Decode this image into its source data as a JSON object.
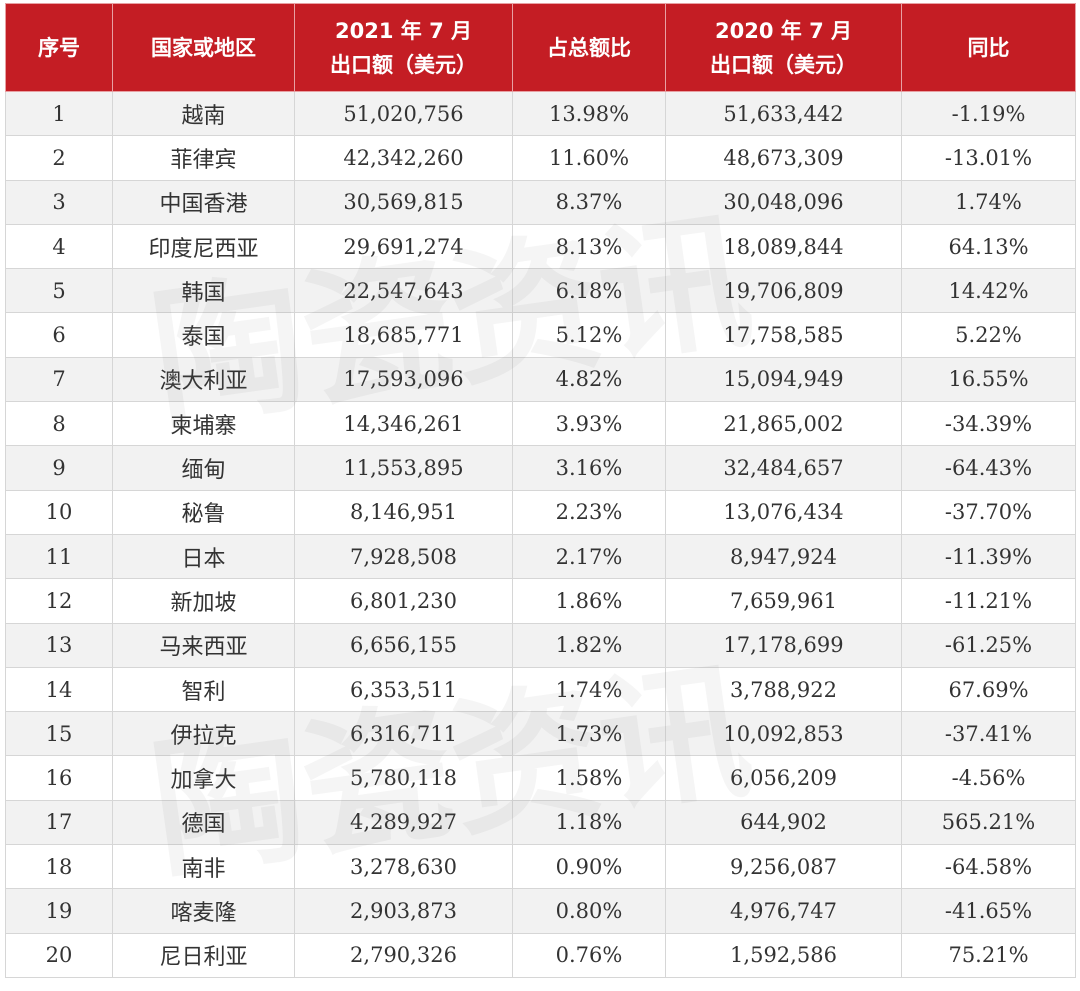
{
  "table": {
    "headers": {
      "rank": "序号",
      "region": "国家或地区",
      "export_2021_line1": "2021 年 7 月",
      "export_2021_line2": "出口额（美元）",
      "share": "占总额比",
      "export_2020_line1": "2020 年 7 月",
      "export_2020_line2": "出口额（美元）",
      "yoy": "同比"
    },
    "rows": [
      {
        "rank": "1",
        "region": "越南",
        "export_2021": "51,020,756",
        "share": "13.98%",
        "export_2020": "51,633,442",
        "yoy": "-1.19%"
      },
      {
        "rank": "2",
        "region": "菲律宾",
        "export_2021": "42,342,260",
        "share": "11.60%",
        "export_2020": "48,673,309",
        "yoy": "-13.01%"
      },
      {
        "rank": "3",
        "region": "中国香港",
        "export_2021": "30,569,815",
        "share": "8.37%",
        "export_2020": "30,048,096",
        "yoy": "1.74%"
      },
      {
        "rank": "4",
        "region": "印度尼西亚",
        "export_2021": "29,691,274",
        "share": "8.13%",
        "export_2020": "18,089,844",
        "yoy": "64.13%"
      },
      {
        "rank": "5",
        "region": "韩国",
        "export_2021": "22,547,643",
        "share": "6.18%",
        "export_2020": "19,706,809",
        "yoy": "14.42%"
      },
      {
        "rank": "6",
        "region": "泰国",
        "export_2021": "18,685,771",
        "share": "5.12%",
        "export_2020": "17,758,585",
        "yoy": "5.22%"
      },
      {
        "rank": "7",
        "region": "澳大利亚",
        "export_2021": "17,593,096",
        "share": "4.82%",
        "export_2020": "15,094,949",
        "yoy": "16.55%"
      },
      {
        "rank": "8",
        "region": "柬埔寨",
        "export_2021": "14,346,261",
        "share": "3.93%",
        "export_2020": "21,865,002",
        "yoy": "-34.39%"
      },
      {
        "rank": "9",
        "region": "缅甸",
        "export_2021": "11,553,895",
        "share": "3.16%",
        "export_2020": "32,484,657",
        "yoy": "-64.43%"
      },
      {
        "rank": "10",
        "region": "秘鲁",
        "export_2021": "8,146,951",
        "share": "2.23%",
        "export_2020": "13,076,434",
        "yoy": "-37.70%"
      },
      {
        "rank": "11",
        "region": "日本",
        "export_2021": "7,928,508",
        "share": "2.17%",
        "export_2020": "8,947,924",
        "yoy": "-11.39%"
      },
      {
        "rank": "12",
        "region": "新加坡",
        "export_2021": "6,801,230",
        "share": "1.86%",
        "export_2020": "7,659,961",
        "yoy": "-11.21%"
      },
      {
        "rank": "13",
        "region": "马来西亚",
        "export_2021": "6,656,155",
        "share": "1.82%",
        "export_2020": "17,178,699",
        "yoy": "-61.25%"
      },
      {
        "rank": "14",
        "region": "智利",
        "export_2021": "6,353,511",
        "share": "1.74%",
        "export_2020": "3,788,922",
        "yoy": "67.69%"
      },
      {
        "rank": "15",
        "region": "伊拉克",
        "export_2021": "6,316,711",
        "share": "1.73%",
        "export_2020": "10,092,853",
        "yoy": "-37.41%"
      },
      {
        "rank": "16",
        "region": "加拿大",
        "export_2021": "5,780,118",
        "share": "1.58%",
        "export_2020": "6,056,209",
        "yoy": "-4.56%"
      },
      {
        "rank": "17",
        "region": "德国",
        "export_2021": "4,289,927",
        "share": "1.18%",
        "export_2020": "644,902",
        "yoy": "565.21%"
      },
      {
        "rank": "18",
        "region": "南非",
        "export_2021": "3,278,630",
        "share": "0.90%",
        "export_2020": "9,256,087",
        "yoy": "-64.58%"
      },
      {
        "rank": "19",
        "region": "喀麦隆",
        "export_2021": "2,903,873",
        "share": "0.80%",
        "export_2020": "4,976,747",
        "yoy": "-41.65%"
      },
      {
        "rank": "20",
        "region": "尼日利亚",
        "export_2021": "2,790,326",
        "share": "0.76%",
        "export_2020": "1,592,586",
        "yoy": "75.21%"
      }
    ]
  },
  "watermark": {
    "text_top": "陶瓷资讯",
    "text_bottom": "陶瓷资讯"
  },
  "colors": {
    "header_bg": "#c41d24",
    "header_text": "#ffffff",
    "row_alt": "#f2f2f2"
  }
}
